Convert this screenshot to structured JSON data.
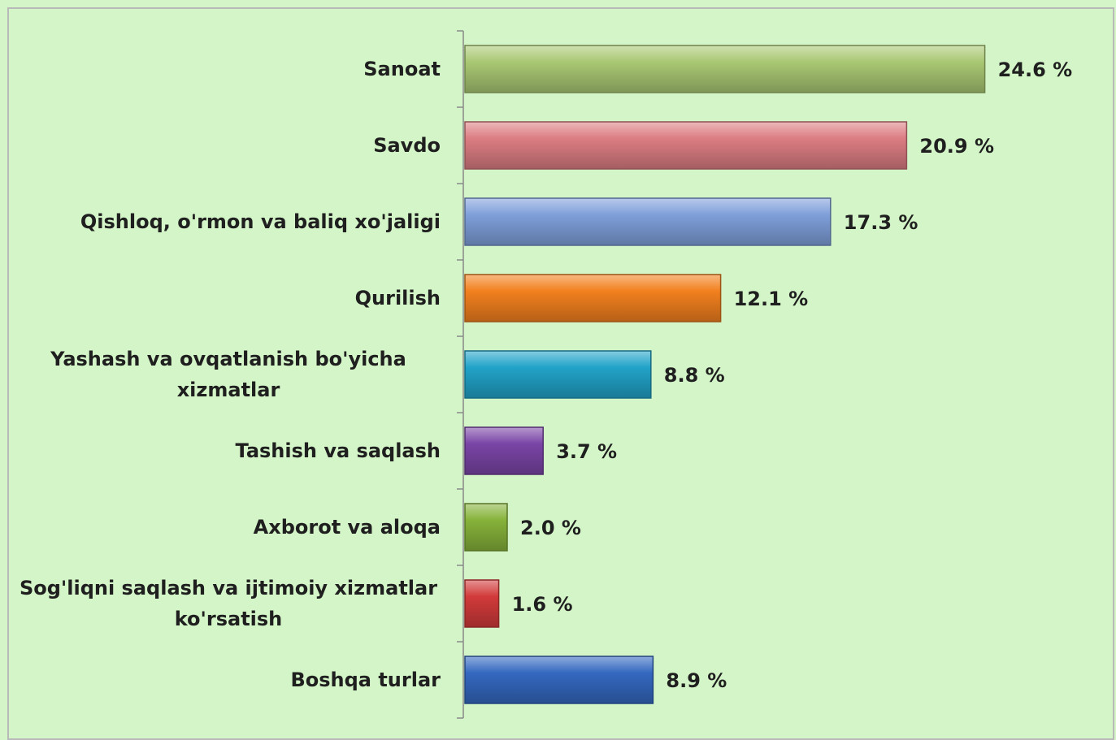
{
  "chart_data": {
    "type": "hbar",
    "categories": [
      "Sanoat",
      "Savdo",
      "Qishloq, o'rmon va baliq xo'jaligi",
      "Qurilish",
      "Yashash va ovqatlanish bo'yicha xizmatlar",
      "Tashish va saqlash",
      "Axborot va aloqa",
      "Sog'liqni saqlash va ijtimoiy xizmatlar ko'rsatish",
      "Boshqa turlar"
    ],
    "values": [
      24.6,
      20.9,
      17.3,
      12.1,
      8.8,
      3.7,
      2.0,
      1.6,
      8.9
    ],
    "value_labels": [
      "24.6 %",
      "20.9 %",
      "17.3 %",
      "12.1 %",
      "8.8 %",
      "3.7 %",
      "2.0 %",
      "1.6 %",
      "8.9 %"
    ],
    "colors": [
      "#a9c873",
      "#dc7d82",
      "#7f9fda",
      "#f2801e",
      "#21a3c8",
      "#7a45a6",
      "#86b23a",
      "#d23a3a",
      "#3468c0"
    ],
    "xlim": [
      0,
      28
    ]
  }
}
